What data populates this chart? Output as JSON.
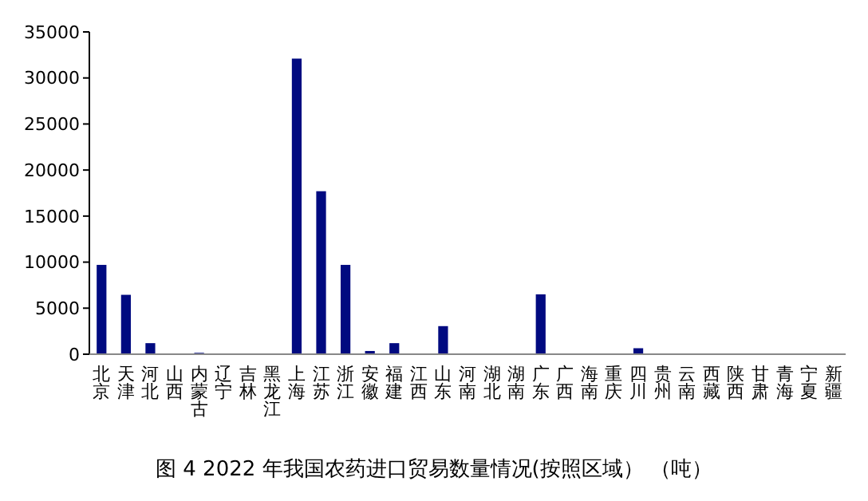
{
  "chart_data": {
    "type": "bar",
    "title": "图 4  2022 年我国农药进口贸易数量情况(按照区域） （吨）",
    "categories": [
      "北京",
      "天津",
      "河北",
      "山西",
      "内蒙古",
      "辽宁",
      "吉林",
      "黑龙江",
      "上海",
      "江苏",
      "浙江",
      "安徽",
      "福建",
      "江西",
      "山东",
      "河南",
      "湖北",
      "湖南",
      "广东",
      "广西",
      "海南",
      "重庆",
      "四川",
      "贵州",
      "云南",
      "西藏",
      "陕西",
      "甘肃",
      "青海",
      "宁夏",
      "新疆"
    ],
    "values": [
      9700,
      6450,
      1200,
      0,
      150,
      0,
      0,
      0,
      32100,
      17700,
      9700,
      350,
      1200,
      0,
      3050,
      0,
      0,
      0,
      6500,
      0,
      0,
      0,
      650,
      0,
      0,
      0,
      0,
      0,
      0,
      0,
      0
    ],
    "color": "#000a80",
    "ylim": [
      0,
      35000
    ],
    "yticks": [
      0,
      5000,
      10000,
      15000,
      20000,
      25000,
      30000,
      35000
    ],
    "grid": false
  }
}
